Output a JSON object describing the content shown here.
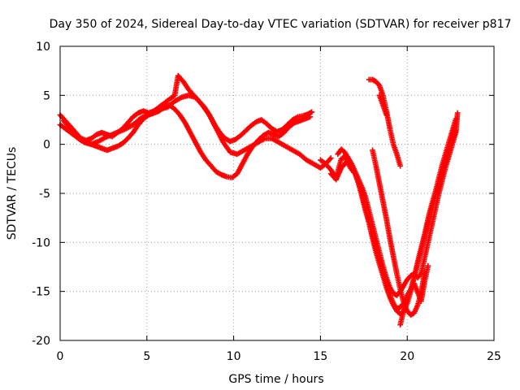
{
  "chart_data": {
    "type": "scatter",
    "title": "Day 350 of 2024, Sidereal Day-to-day VTEC variation (SDTVAR) for receiver p817",
    "xlabel": "GPS time / hours",
    "ylabel": "SDTVAR / TECUs",
    "xlim": [
      0,
      25
    ],
    "ylim": [
      -20,
      10
    ],
    "xticks": [
      0,
      5,
      10,
      15,
      20,
      25
    ],
    "yticks": [
      -20,
      -15,
      -10,
      -5,
      0,
      5,
      10
    ],
    "xtick_labels": [
      "0",
      "5",
      "10",
      "15",
      "20",
      "25"
    ],
    "ytick_labels": [
      "-20",
      "-15",
      "-10",
      "-5",
      "0",
      "5",
      "10"
    ],
    "grid": true,
    "legend": "none",
    "marker": "plus",
    "color": "#ff0000",
    "series": [
      {
        "x": [
          0.0,
          0.3,
          0.6,
          0.9,
          1.2,
          1.5,
          1.8,
          2.1,
          2.4,
          2.7,
          3.0,
          3.3,
          3.6,
          3.9,
          4.2,
          4.5,
          4.8,
          5.1,
          5.4,
          5.7,
          6.0,
          6.3,
          6.6,
          6.8,
          7.1,
          7.4,
          7.7,
          8.0,
          8.3,
          8.6,
          8.9,
          9.2,
          9.5,
          9.8,
          10.1,
          10.4,
          10.7,
          11.0,
          11.3,
          11.6,
          11.9,
          12.2,
          12.5,
          12.8,
          13.1,
          13.4,
          13.7,
          14.0,
          14.3,
          14.5
        ],
        "y": [
          3.0,
          2.4,
          1.8,
          1.2,
          0.6,
          0.4,
          0.6,
          1.0,
          1.2,
          1.0,
          0.8,
          1.2,
          1.6,
          2.2,
          2.8,
          3.2,
          3.4,
          3.2,
          3.4,
          3.8,
          4.2,
          4.6,
          5.0,
          7.0,
          6.4,
          5.6,
          5.0,
          4.4,
          3.8,
          3.0,
          2.0,
          1.2,
          0.6,
          0.3,
          0.5,
          0.9,
          1.4,
          1.9,
          2.3,
          2.5,
          2.1,
          1.6,
          1.3,
          1.5,
          2.0,
          2.5,
          2.8,
          2.9,
          3.1,
          3.3
        ]
      },
      {
        "x": [
          0.0,
          0.3,
          0.6,
          0.9,
          1.2,
          1.5,
          1.8,
          2.1,
          2.4,
          2.7,
          3.0,
          3.3,
          3.6,
          3.9,
          4.2,
          4.5,
          4.8,
          5.1,
          5.4,
          5.7,
          6.0,
          6.3,
          6.6,
          6.9,
          7.2,
          7.5,
          7.8,
          8.1,
          8.4,
          8.7,
          9.0,
          9.3,
          9.6,
          9.9,
          10.2,
          10.5,
          10.8,
          11.1,
          11.4,
          11.7,
          12.0,
          12.3,
          12.6,
          12.9,
          13.2,
          13.5,
          13.8,
          14.1,
          14.4
        ],
        "y": [
          2.0,
          1.6,
          1.2,
          0.8,
          0.4,
          0.2,
          0.0,
          -0.2,
          -0.4,
          -0.6,
          -0.4,
          -0.2,
          0.1,
          0.6,
          1.2,
          2.0,
          2.6,
          3.0,
          3.2,
          3.4,
          3.8,
          4.0,
          3.6,
          3.0,
          2.2,
          1.2,
          0.2,
          -0.8,
          -1.6,
          -2.2,
          -2.8,
          -3.1,
          -3.3,
          -3.4,
          -3.0,
          -2.0,
          -1.0,
          -0.2,
          0.4,
          0.9,
          1.2,
          1.0,
          0.8,
          1.2,
          1.8,
          2.2,
          2.4,
          2.6,
          2.8
        ]
      },
      {
        "x": [
          0.2,
          0.6,
          1.0,
          1.4,
          1.8,
          2.2,
          2.6,
          3.0,
          3.4,
          3.8,
          4.2,
          4.6,
          5.0,
          5.4,
          5.8,
          6.2,
          6.6,
          7.0,
          7.4,
          7.8,
          8.2,
          8.6,
          9.0,
          9.4,
          9.8,
          10.2,
          10.6,
          11.0,
          11.4,
          11.8,
          12.2,
          12.6,
          13.0,
          13.4,
          13.8,
          14.2,
          14.6,
          15.0,
          15.3,
          15.6
        ],
        "y": [
          2.4,
          1.6,
          0.8,
          0.2,
          0.0,
          0.3,
          0.7,
          1.0,
          1.3,
          1.6,
          2.0,
          2.6,
          3.0,
          3.2,
          3.6,
          3.8,
          4.4,
          4.8,
          5.0,
          4.8,
          4.0,
          3.0,
          1.6,
          0.2,
          -0.8,
          -1.0,
          -0.6,
          -0.2,
          0.2,
          0.6,
          0.6,
          0.2,
          -0.2,
          -0.6,
          -1.0,
          -1.6,
          -2.0,
          -2.4,
          -2.0,
          -1.4
        ]
      },
      {
        "x": [
          15.0,
          15.3,
          15.6,
          15.9,
          16.2,
          16.4,
          16.6,
          16.8,
          17.0,
          17.2,
          17.4,
          17.6,
          17.8,
          18.0,
          18.2,
          18.4,
          18.6,
          18.8,
          19.0,
          19.2,
          19.4,
          19.6,
          19.8,
          20.0,
          20.2,
          20.4,
          20.6,
          20.8,
          21.0,
          21.2,
          21.4,
          21.6,
          21.8,
          22.0,
          22.2,
          22.4,
          22.6,
          22.8
        ],
        "y": [
          -1.6,
          -2.0,
          -2.6,
          -3.4,
          -1.5,
          -1.2,
          -2.0,
          -2.6,
          -3.0,
          -4.0,
          -5.4,
          -6.8,
          -8.0,
          -9.4,
          -10.6,
          -11.8,
          -13.0,
          -14.2,
          -15.4,
          -16.2,
          -16.8,
          -16.6,
          -16.2,
          -15.6,
          -14.8,
          -13.6,
          -12.2,
          -10.8,
          -9.4,
          -8.0,
          -6.6,
          -5.4,
          -4.2,
          -2.8,
          -1.6,
          -0.6,
          0.4,
          1.4
        ]
      },
      {
        "x": [
          15.6,
          15.9,
          16.2,
          16.5,
          16.8,
          17.0,
          17.2,
          17.4,
          17.6,
          17.8,
          18.0,
          18.2,
          18.4,
          18.6,
          18.8,
          19.0,
          19.2,
          19.4,
          19.6,
          19.8,
          20.0,
          20.2,
          20.4,
          20.6,
          20.8,
          21.0,
          21.2,
          21.4,
          21.6,
          21.8,
          22.0,
          22.2,
          22.4,
          22.6,
          22.8
        ],
        "y": [
          -3.0,
          -3.6,
          -2.4,
          -1.8,
          -2.2,
          -3.0,
          -4.0,
          -5.2,
          -6.6,
          -8.0,
          -9.6,
          -11.0,
          -12.2,
          -13.4,
          -14.6,
          -15.6,
          -16.4,
          -17.0,
          -17.3,
          -17.0,
          -16.2,
          -15.0,
          -13.6,
          -12.0,
          -10.6,
          -9.2,
          -7.6,
          -6.2,
          -5.0,
          -3.6,
          -2.2,
          -1.0,
          0.2,
          1.4,
          2.6
        ]
      },
      {
        "x": [
          16.0,
          16.2,
          16.4,
          16.6,
          16.8,
          17.0,
          17.2,
          17.4,
          17.6,
          17.8,
          18.0,
          18.2,
          18.4,
          18.6,
          18.8,
          19.0,
          19.2,
          19.4,
          19.6,
          19.8,
          20.0,
          20.2,
          20.4,
          20.6,
          20.8,
          21.0,
          21.2,
          21.4,
          21.6,
          21.8,
          22.0,
          22.2,
          22.4,
          22.6,
          22.8,
          22.9
        ],
        "y": [
          -1.0,
          -0.5,
          -0.8,
          -1.4,
          -2.0,
          -2.8,
          -3.6,
          -4.4,
          -5.4,
          -6.8,
          -8.2,
          -9.6,
          -11.0,
          -12.4,
          -13.6,
          -14.6,
          -15.2,
          -15.4,
          -15.0,
          -14.4,
          -13.8,
          -13.4,
          -13.2,
          -13.6,
          -13.2,
          -11.6,
          -10.0,
          -8.4,
          -6.8,
          -5.2,
          -3.8,
          -2.4,
          -1.2,
          0.0,
          1.2,
          3.2
        ]
      },
      {
        "x": [
          18.0,
          18.2,
          18.4,
          18.6,
          18.8,
          19.0,
          19.2,
          19.4,
          19.6,
          19.8,
          20.0,
          20.2,
          20.4,
          20.6,
          20.8,
          21.0
        ],
        "y": [
          -0.6,
          -2.2,
          -4.0,
          -5.8,
          -7.6,
          -9.6,
          -11.4,
          -13.2,
          -14.8,
          -16.2,
          -17.0,
          -17.4,
          -17.2,
          -16.4,
          -15.2,
          -13.0
        ]
      },
      {
        "x": [
          17.8,
          18.0,
          18.2,
          18.4,
          18.6,
          18.8,
          19.0,
          19.2,
          19.4,
          19.6
        ],
        "y": [
          6.6,
          6.6,
          6.4,
          6.0,
          5.0,
          3.4,
          1.6,
          0.0,
          -1.0,
          -2.2
        ]
      },
      {
        "x": [
          18.4,
          18.6,
          18.8
        ],
        "y": [
          5.0,
          4.0,
          3.0
        ]
      },
      {
        "x": [
          19.6,
          20.0,
          20.4,
          20.8,
          21.0,
          21.2
        ],
        "y": [
          -18.4,
          -15.4,
          -14.2,
          -16.0,
          -14.0,
          -12.4
        ]
      }
    ]
  }
}
